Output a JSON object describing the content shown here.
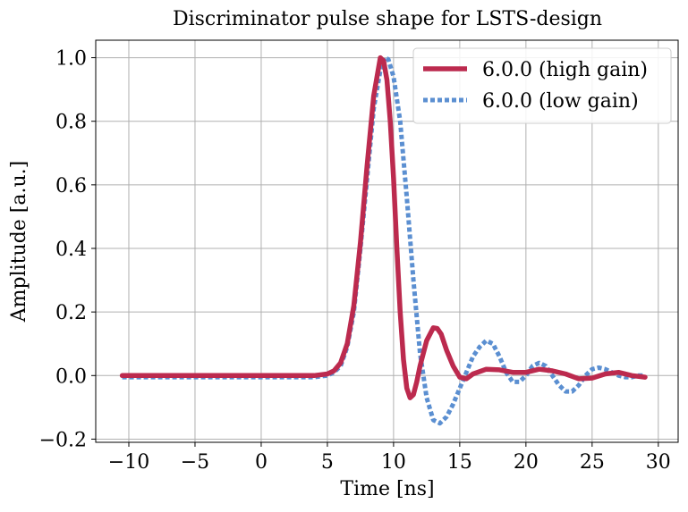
{
  "chart_data": {
    "type": "line",
    "title": "Discriminator pulse shape for LSTS-design",
    "xlabel": "Time [ns]",
    "ylabel": "Amplitude [a.u.]",
    "xlim": [
      -12.5,
      31.5
    ],
    "ylim": [
      -0.21,
      1.055
    ],
    "xticks": [
      -10,
      -5,
      0,
      5,
      10,
      15,
      20,
      25,
      30
    ],
    "xtick_labels": [
      "−10",
      "−5",
      "0",
      "5",
      "10",
      "15",
      "20",
      "25",
      "30"
    ],
    "yticks": [
      -0.2,
      0.0,
      0.2,
      0.4,
      0.6,
      0.8,
      1.0
    ],
    "ytick_labels": [
      "−0.2",
      "0.0",
      "0.2",
      "0.4",
      "0.6",
      "0.8",
      "1.0"
    ],
    "grid": true,
    "legend_position": "top-right",
    "series": [
      {
        "name": "6.0.0 (high gain)",
        "color": "#bc2a4e",
        "style": "solid",
        "x": [
          -10.5,
          -5,
          0,
          4,
          5,
          5.5,
          6,
          6.5,
          7,
          7.5,
          8,
          8.5,
          9,
          9.25,
          9.5,
          9.75,
          10,
          10.25,
          10.5,
          10.75,
          11,
          11.25,
          11.5,
          11.75,
          12,
          12.5,
          13,
          13.3,
          13.6,
          14,
          14.5,
          15,
          15.5,
          16,
          17,
          18,
          19,
          20,
          21,
          22,
          23,
          24,
          25,
          26,
          27,
          28,
          29
        ],
        "y": [
          0.0,
          0.0,
          0.0,
          0.0,
          0.005,
          0.015,
          0.04,
          0.1,
          0.22,
          0.42,
          0.66,
          0.88,
          1.0,
          0.99,
          0.93,
          0.8,
          0.62,
          0.4,
          0.2,
          0.05,
          -0.04,
          -0.07,
          -0.06,
          -0.02,
          0.03,
          0.11,
          0.15,
          0.148,
          0.13,
          0.08,
          0.03,
          -0.005,
          -0.01,
          0.005,
          0.02,
          0.018,
          0.01,
          0.01,
          0.02,
          0.015,
          0.005,
          -0.01,
          -0.008,
          0.005,
          0.01,
          0.0,
          -0.005
        ]
      },
      {
        "name": "6.0.0 (low gain)",
        "color": "#5b8fd1",
        "style": "dotted",
        "x": [
          -10.5,
          -5,
          0,
          4,
          5,
          5.5,
          6,
          6.5,
          7,
          7.5,
          8,
          8.5,
          9,
          9.3,
          9.6,
          10,
          10.5,
          11,
          11.5,
          12,
          12.5,
          13,
          13.5,
          14,
          14.5,
          15,
          15.5,
          16,
          16.5,
          17,
          17.5,
          18,
          18.5,
          19,
          19.5,
          20,
          20.5,
          21,
          21.5,
          22,
          22.5,
          23,
          23.5,
          24,
          24.5,
          25,
          25.5,
          26,
          26.5,
          27,
          27.5,
          28,
          28.5,
          29
        ],
        "y": [
          -0.005,
          -0.005,
          -0.005,
          -0.005,
          0.0,
          0.01,
          0.03,
          0.09,
          0.2,
          0.4,
          0.62,
          0.84,
          0.96,
          1.0,
          0.995,
          0.94,
          0.8,
          0.56,
          0.3,
          0.07,
          -0.07,
          -0.14,
          -0.15,
          -0.13,
          -0.09,
          -0.04,
          0.01,
          0.06,
          0.09,
          0.11,
          0.1,
          0.06,
          0.01,
          -0.02,
          -0.02,
          0.0,
          0.03,
          0.04,
          0.03,
          0.0,
          -0.03,
          -0.05,
          -0.05,
          -0.03,
          0.0,
          0.02,
          0.025,
          0.02,
          0.01,
          0.0,
          -0.005,
          -0.005,
          0.0,
          0.0
        ]
      }
    ]
  }
}
